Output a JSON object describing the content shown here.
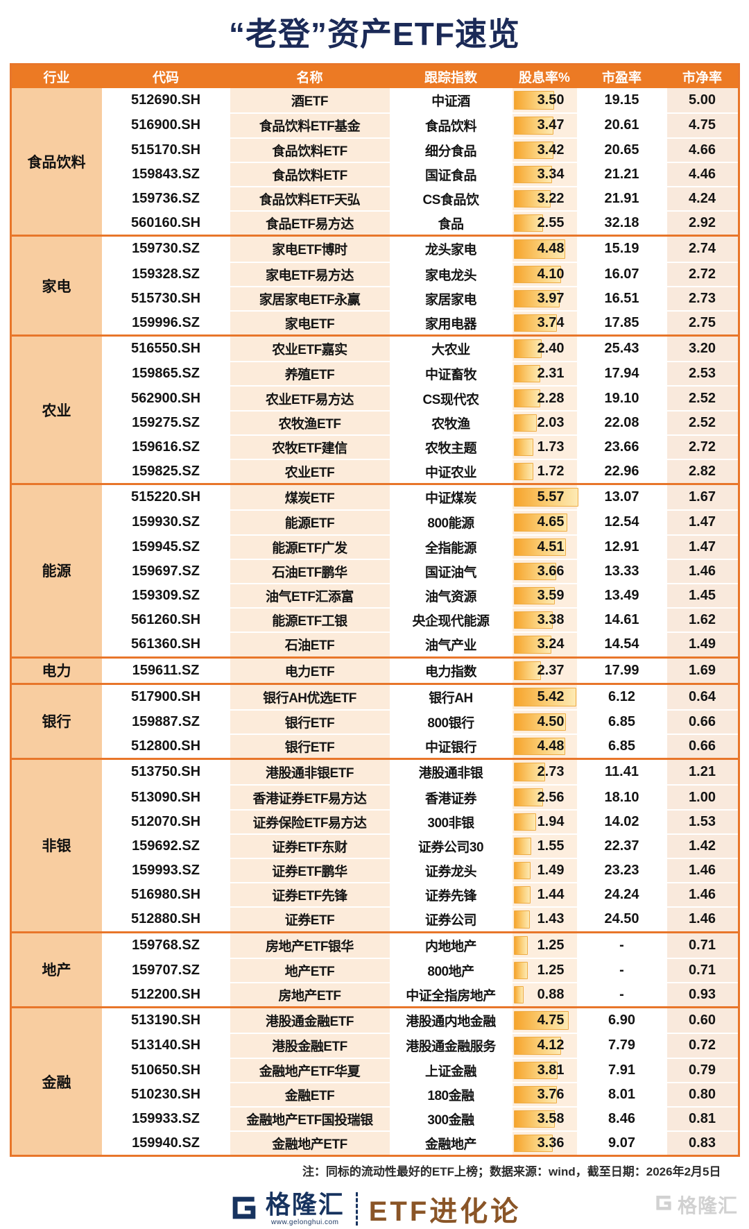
{
  "title": "“老登”资产ETF速览",
  "table": {
    "headers": [
      "行业",
      "代码",
      "名称",
      "跟踪指数",
      "股息率%",
      "市盈率",
      "市净率"
    ],
    "yield_max": 5.57,
    "groups": [
      {
        "industry": "食品饮料",
        "rows": [
          {
            "code": "512690.SH",
            "name": "酒ETF",
            "index": "中证酒",
            "yield": "3.50",
            "pe": "19.15",
            "pb": "5.00"
          },
          {
            "code": "516900.SH",
            "name": "食品饮料ETF基金",
            "index": "食品饮料",
            "yield": "3.47",
            "pe": "20.61",
            "pb": "4.75"
          },
          {
            "code": "515170.SH",
            "name": "食品饮料ETF",
            "index": "细分食品",
            "yield": "3.42",
            "pe": "20.65",
            "pb": "4.66"
          },
          {
            "code": "159843.SZ",
            "name": "食品饮料ETF",
            "index": "国证食品",
            "yield": "3.34",
            "pe": "21.21",
            "pb": "4.46"
          },
          {
            "code": "159736.SZ",
            "name": "食品饮料ETF天弘",
            "index": "CS食品饮",
            "yield": "3.22",
            "pe": "21.91",
            "pb": "4.24"
          },
          {
            "code": "560160.SH",
            "name": "食品ETF易方达",
            "index": "食品",
            "yield": "2.55",
            "pe": "32.18",
            "pb": "2.92"
          }
        ]
      },
      {
        "industry": "家电",
        "rows": [
          {
            "code": "159730.SZ",
            "name": "家电ETF博时",
            "index": "龙头家电",
            "yield": "4.48",
            "pe": "15.19",
            "pb": "2.74"
          },
          {
            "code": "159328.SZ",
            "name": "家电ETF易方达",
            "index": "家电龙头",
            "yield": "4.10",
            "pe": "16.07",
            "pb": "2.72"
          },
          {
            "code": "515730.SH",
            "name": "家居家电ETF永赢",
            "index": "家居家电",
            "yield": "3.97",
            "pe": "16.51",
            "pb": "2.73"
          },
          {
            "code": "159996.SZ",
            "name": "家电ETF",
            "index": "家用电器",
            "yield": "3.74",
            "pe": "17.85",
            "pb": "2.75"
          }
        ]
      },
      {
        "industry": "农业",
        "rows": [
          {
            "code": "516550.SH",
            "name": "农业ETF嘉实",
            "index": "大农业",
            "yield": "2.40",
            "pe": "25.43",
            "pb": "3.20"
          },
          {
            "code": "159865.SZ",
            "name": "养殖ETF",
            "index": "中证畜牧",
            "yield": "2.31",
            "pe": "17.94",
            "pb": "2.53"
          },
          {
            "code": "562900.SH",
            "name": "农业ETF易方达",
            "index": "CS现代农",
            "yield": "2.28",
            "pe": "19.10",
            "pb": "2.52"
          },
          {
            "code": "159275.SZ",
            "name": "农牧渔ETF",
            "index": "农牧渔",
            "yield": "2.03",
            "pe": "22.08",
            "pb": "2.52"
          },
          {
            "code": "159616.SZ",
            "name": "农牧ETF建信",
            "index": "农牧主题",
            "yield": "1.73",
            "pe": "23.66",
            "pb": "2.72"
          },
          {
            "code": "159825.SZ",
            "name": "农业ETF",
            "index": "中证农业",
            "yield": "1.72",
            "pe": "22.96",
            "pb": "2.82"
          }
        ]
      },
      {
        "industry": "能源",
        "rows": [
          {
            "code": "515220.SH",
            "name": "煤炭ETF",
            "index": "中证煤炭",
            "yield": "5.57",
            "pe": "13.07",
            "pb": "1.67"
          },
          {
            "code": "159930.SZ",
            "name": "能源ETF",
            "index": "800能源",
            "yield": "4.65",
            "pe": "12.54",
            "pb": "1.47"
          },
          {
            "code": "159945.SZ",
            "name": "能源ETF广发",
            "index": "全指能源",
            "yield": "4.51",
            "pe": "12.91",
            "pb": "1.47"
          },
          {
            "code": "159697.SZ",
            "name": "石油ETF鹏华",
            "index": "国证油气",
            "yield": "3.66",
            "pe": "13.33",
            "pb": "1.46"
          },
          {
            "code": "159309.SZ",
            "name": "油气ETF汇添富",
            "index": "油气资源",
            "yield": "3.59",
            "pe": "13.49",
            "pb": "1.45"
          },
          {
            "code": "561260.SH",
            "name": "能源ETF工银",
            "index": "央企现代能源",
            "yield": "3.38",
            "pe": "14.61",
            "pb": "1.62"
          },
          {
            "code": "561360.SH",
            "name": "石油ETF",
            "index": "油气产业",
            "yield": "3.24",
            "pe": "14.54",
            "pb": "1.49"
          }
        ]
      },
      {
        "industry": "电力",
        "rows": [
          {
            "code": "159611.SZ",
            "name": "电力ETF",
            "index": "电力指数",
            "yield": "2.37",
            "pe": "17.99",
            "pb": "1.69"
          }
        ]
      },
      {
        "industry": "银行",
        "rows": [
          {
            "code": "517900.SH",
            "name": "银行AH优选ETF",
            "index": "银行AH",
            "yield": "5.42",
            "pe": "6.12",
            "pb": "0.64"
          },
          {
            "code": "159887.SZ",
            "name": "银行ETF",
            "index": "800银行",
            "yield": "4.50",
            "pe": "6.85",
            "pb": "0.66"
          },
          {
            "code": "512800.SH",
            "name": "银行ETF",
            "index": "中证银行",
            "yield": "4.48",
            "pe": "6.85",
            "pb": "0.66"
          }
        ]
      },
      {
        "industry": "非银",
        "rows": [
          {
            "code": "513750.SH",
            "name": "港股通非银ETF",
            "index": "港股通非银",
            "yield": "2.73",
            "pe": "11.41",
            "pb": "1.21"
          },
          {
            "code": "513090.SH",
            "name": "香港证券ETF易方达",
            "index": "香港证券",
            "yield": "2.56",
            "pe": "18.10",
            "pb": "1.00"
          },
          {
            "code": "512070.SH",
            "name": "证券保险ETF易方达",
            "index": "300非银",
            "yield": "1.94",
            "pe": "14.02",
            "pb": "1.53"
          },
          {
            "code": "159692.SZ",
            "name": "证券ETF东财",
            "index": "证券公司30",
            "yield": "1.55",
            "pe": "22.37",
            "pb": "1.42"
          },
          {
            "code": "159993.SZ",
            "name": "证券ETF鹏华",
            "index": "证券龙头",
            "yield": "1.49",
            "pe": "23.23",
            "pb": "1.46"
          },
          {
            "code": "516980.SH",
            "name": "证券ETF先锋",
            "index": "证券先锋",
            "yield": "1.44",
            "pe": "24.24",
            "pb": "1.46"
          },
          {
            "code": "512880.SH",
            "name": "证券ETF",
            "index": "证券公司",
            "yield": "1.43",
            "pe": "24.50",
            "pb": "1.46"
          }
        ]
      },
      {
        "industry": "地产",
        "rows": [
          {
            "code": "159768.SZ",
            "name": "房地产ETF银华",
            "index": "内地地产",
            "yield": "1.25",
            "pe": "-",
            "pb": "0.71"
          },
          {
            "code": "159707.SZ",
            "name": "地产ETF",
            "index": "800地产",
            "yield": "1.25",
            "pe": "-",
            "pb": "0.71"
          },
          {
            "code": "512200.SH",
            "name": "房地产ETF",
            "index": "中证全指房地产",
            "yield": "0.88",
            "pe": "-",
            "pb": "0.93"
          }
        ]
      },
      {
        "industry": "金融",
        "rows": [
          {
            "code": "513190.SH",
            "name": "港股通金融ETF",
            "index": "港股通内地金融",
            "yield": "4.75",
            "pe": "6.90",
            "pb": "0.60"
          },
          {
            "code": "513140.SH",
            "name": "港股金融ETF",
            "index": "港股通金融服务",
            "yield": "4.12",
            "pe": "7.79",
            "pb": "0.72"
          },
          {
            "code": "510650.SH",
            "name": "金融地产ETF华夏",
            "index": "上证金融",
            "yield": "3.81",
            "pe": "7.91",
            "pb": "0.79"
          },
          {
            "code": "510230.SH",
            "name": "金融ETF",
            "index": "180金融",
            "yield": "3.76",
            "pe": "8.01",
            "pb": "0.80"
          },
          {
            "code": "159933.SZ",
            "name": "金融地产ETF国投瑞银",
            "index": "300金融",
            "yield": "3.58",
            "pe": "8.46",
            "pb": "0.81"
          },
          {
            "code": "159940.SZ",
            "name": "金融地产ETF",
            "index": "金融地产",
            "yield": "3.36",
            "pe": "9.07",
            "pb": "0.83"
          }
        ]
      }
    ]
  },
  "note": "注：同标的流动性最好的ETF上榜；数据来源：wind，截至日期：2026年2月5日",
  "footer": {
    "brand": "格隆汇",
    "brand_url": "www.gelonghui.com",
    "column": "ETF进化论",
    "watermark": "格隆汇"
  },
  "colors": {
    "header_bg": "#ec7a24",
    "divider_orange": "#e8762a",
    "industry_bg": "#f8cda0",
    "name_col_bg": "#fcebda",
    "yield_col_bg": "#fdeede",
    "pb_col_bg": "#f9e9dc",
    "bar_start": "#f6a42c",
    "bar_end": "#fdeab4",
    "title_navy": "#1b2a57",
    "brand_navy": "#17335f",
    "brand_brown": "#8a5527",
    "watermark_gray": "#c9c9c9"
  }
}
